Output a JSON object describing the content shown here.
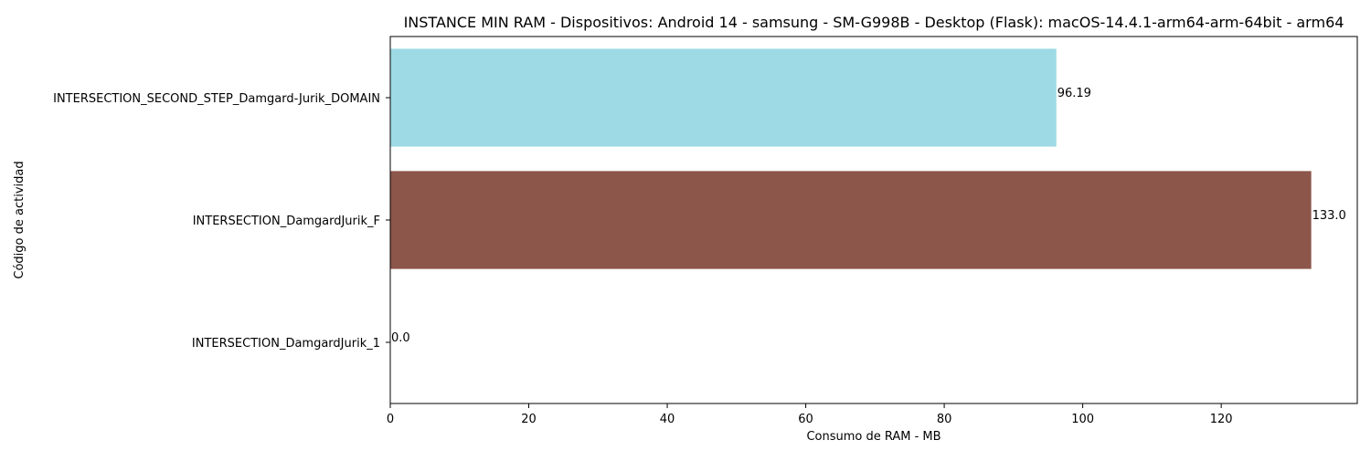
{
  "chart_data": {
    "type": "bar",
    "orientation": "horizontal",
    "title": "INSTANCE MIN RAM - Dispositivos: Android 14 - samsung - SM-G998B - Desktop (Flask): macOS-14.4.1-arm64-arm-64bit - arm64",
    "xlabel": "Consumo de RAM - MB",
    "ylabel": "Código de actividad",
    "categories": [
      "INTERSECTION_DamgardJurik_1",
      "INTERSECTION_DamgardJurik_F",
      "INTERSECTION_SECOND_STEP_Damgard-Jurik_DOMAIN"
    ],
    "values": [
      0.0,
      133.0,
      96.19
    ],
    "value_labels": [
      "0.0",
      "133.0",
      "96.19"
    ],
    "colors": [
      "#1f77b4",
      "#8c564b",
      "#9edae5"
    ],
    "xlim": [
      0,
      139.65
    ],
    "xticks": [
      0,
      20,
      40,
      60,
      80,
      100,
      120
    ],
    "grid": false,
    "legend": "none"
  }
}
